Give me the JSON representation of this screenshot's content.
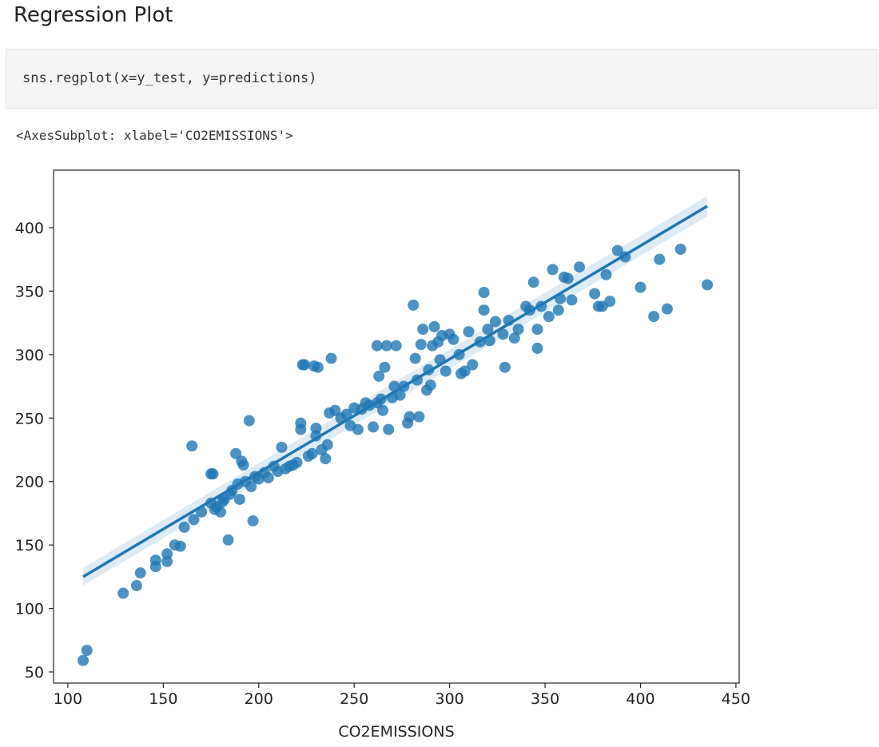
{
  "heading": "Regression Plot",
  "code": "sns.regplot(x=y_test, y=predictions)",
  "output": "<AxesSubplot: xlabel='CO2EMISSIONS'>",
  "chart_data": {
    "type": "scatter",
    "x_label": "CO2EMISSIONS",
    "color": "#1f77b4",
    "xlim": [
      92.5,
      451.7
    ],
    "ylim": [
      41.2,
      445.3
    ],
    "xticks": [
      100,
      150,
      200,
      250,
      300,
      350,
      400,
      450
    ],
    "yticks": [
      50,
      100,
      150,
      200,
      250,
      300,
      350,
      400
    ],
    "regression_line": {
      "x": [
        108,
        435
      ],
      "y": [
        125,
        417
      ],
      "ci_lower": [
        118,
        409
      ],
      "ci_upper": [
        132,
        425
      ]
    },
    "x": [
      108,
      110,
      129,
      136,
      138,
      146,
      146,
      152,
      152,
      156,
      159,
      161,
      165,
      166,
      170,
      175,
      176,
      175,
      177,
      178,
      180,
      181,
      182,
      184,
      185,
      186,
      188,
      189,
      190,
      191,
      192,
      193,
      195,
      196,
      197,
      198,
      200,
      203,
      205,
      208,
      210,
      212,
      214,
      216,
      218,
      220,
      222,
      222,
      223,
      224,
      226,
      228,
      229,
      230,
      230,
      231,
      233,
      235,
      236,
      237,
      238,
      240,
      243,
      246,
      248,
      250,
      252,
      254,
      256,
      258,
      260,
      262,
      262,
      263,
      264,
      265,
      266,
      267,
      268,
      270,
      271,
      272,
      274,
      276,
      278,
      279,
      281,
      282,
      283,
      284,
      285,
      286,
      288,
      289,
      290,
      291,
      292,
      294,
      295,
      296,
      298,
      300,
      302,
      305,
      306,
      308,
      310,
      312,
      316,
      318,
      318,
      320,
      321,
      324,
      328,
      329,
      331,
      334,
      336,
      340,
      342,
      344,
      346,
      346,
      348,
      352,
      354,
      357,
      358,
      360,
      362,
      364,
      368,
      376,
      378,
      380,
      382,
      384,
      388,
      392,
      400,
      407,
      410,
      414,
      421,
      435
    ],
    "y": [
      59,
      67,
      112,
      118,
      128,
      133,
      138,
      143,
      137,
      150,
      149,
      164,
      228,
      170,
      176,
      206,
      206,
      183,
      178,
      180,
      176,
      184,
      186,
      154,
      190,
      193,
      222,
      198,
      186,
      216,
      213,
      200,
      248,
      196,
      169,
      204,
      202,
      207,
      203,
      212,
      208,
      227,
      210,
      212,
      213,
      215,
      246,
      241,
      292,
      292,
      220,
      222,
      291,
      236,
      242,
      290,
      225,
      218,
      229,
      254,
      297,
      256,
      250,
      253,
      244,
      258,
      241,
      257,
      262,
      260,
      243,
      262,
      307,
      283,
      265,
      256,
      290,
      307,
      241,
      266,
      275,
      307,
      268,
      275,
      246,
      251,
      339,
      297,
      280,
      251,
      308,
      320,
      272,
      288,
      276,
      307,
      322,
      310,
      296,
      315,
      287,
      316,
      312,
      300,
      285,
      287,
      318,
      292,
      310,
      335,
      349,
      320,
      311,
      326,
      316,
      290,
      327,
      313,
      320,
      338,
      335,
      357,
      305,
      320,
      338,
      330,
      367,
      335,
      344,
      361,
      360,
      343,
      369,
      348,
      338,
      338,
      363,
      342,
      382,
      377,
      353,
      330,
      375,
      336,
      383,
      355
    ]
  }
}
